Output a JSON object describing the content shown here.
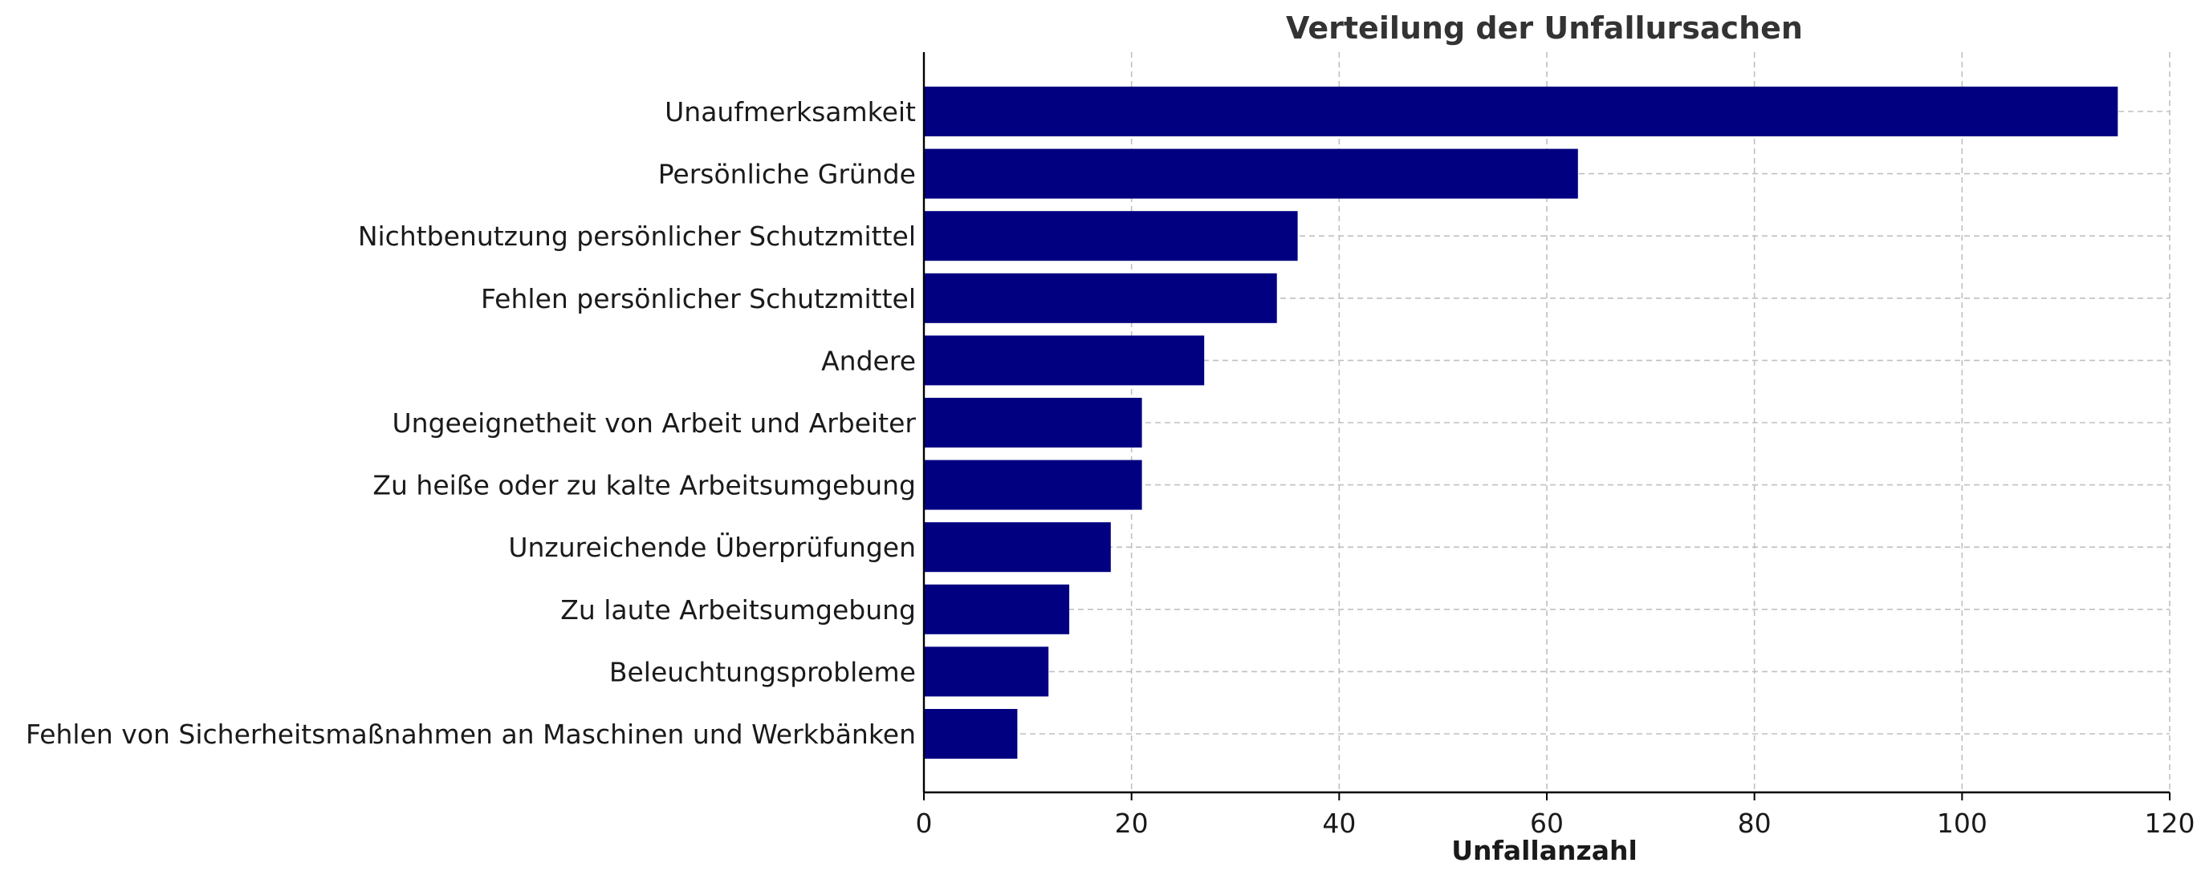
{
  "chart_data": {
    "type": "bar",
    "orientation": "horizontal",
    "title": "Verteilung der Unfallursachen",
    "xlabel": "Unfallanzahl",
    "ylabel": "",
    "categories": [
      "Unaufmerksamkeit",
      "Persönliche Gründe",
      "Nichtbenutzung persönlicher Schutzmittel",
      "Fehlen persönlicher Schutzmittel",
      "Andere",
      "Ungeeignetheit von Arbeit und Arbeiter",
      "Zu heiße oder zu kalte Arbeitsumgebung",
      "Unzureichende Überprüfungen",
      "Zu laute Arbeitsumgebung",
      "Beleuchtungsprobleme",
      "Fehlen von Sicherheitsmaßnahmen an Maschinen und Werkbänken"
    ],
    "values": [
      115,
      63,
      36,
      34,
      27,
      21,
      21,
      18,
      14,
      12,
      9
    ],
    "xlim": [
      0,
      120
    ],
    "xticks": [
      "0",
      "20",
      "40",
      "60",
      "80",
      "100",
      "120"
    ],
    "grid": true,
    "colors": {
      "bar": "#000080",
      "grid": "#c0c0c0",
      "axis": "#000000",
      "title": "#333333",
      "text": "#1a1a1a"
    }
  }
}
